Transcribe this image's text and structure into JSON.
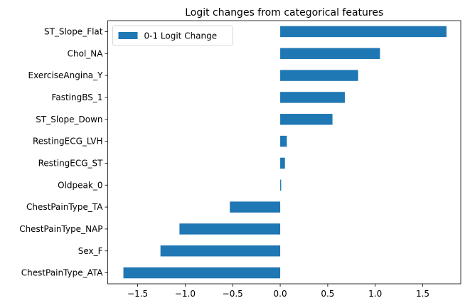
{
  "chart_data": {
    "type": "bar",
    "orientation": "horizontal",
    "title": "Logit changes from categorical features",
    "xlabel": "",
    "ylabel": "",
    "xlim": [
      -1.815,
      1.9
    ],
    "xticks": [
      -1.5,
      -1.0,
      -0.5,
      0.0,
      0.5,
      1.0,
      1.5
    ],
    "xtick_labels": [
      "−1.5",
      "−1.0",
      "−0.5",
      "0.0",
      "0.5",
      "1.0",
      "1.5"
    ],
    "grid": false,
    "legend_position": "upper-left",
    "categories": [
      "ST_Slope_Flat",
      "Chol_NA",
      "ExerciseAngina_Y",
      "FastingBS_1",
      "ST_Slope_Down",
      "RestingECG_LVH",
      "RestingECG_ST",
      "Oldpeak_0",
      "ChestPainType_TA",
      "ChestPainType_NAP",
      "Sex_F",
      "ChestPainType_ATA"
    ],
    "series": [
      {
        "name": "0-1 Logit Change",
        "color": "#1f77b4",
        "values": [
          1.75,
          1.05,
          0.82,
          0.68,
          0.55,
          0.07,
          0.05,
          0.01,
          -0.53,
          -1.06,
          -1.26,
          -1.65
        ]
      }
    ]
  }
}
